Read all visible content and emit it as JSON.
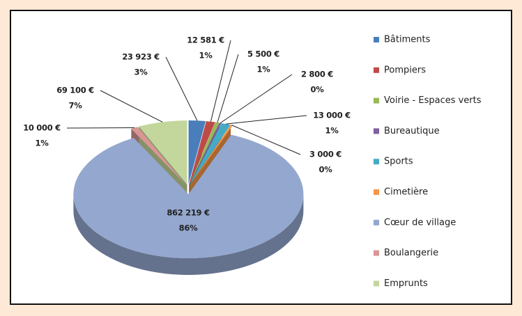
{
  "chart_data": {
    "type": "pie3d",
    "categories": [
      "Bâtiments",
      "Pompiers",
      "Voirie - Espaces verts",
      "Bureautique",
      "Sports",
      "Cimetière",
      "Cœur de village",
      "Boulangerie",
      "Emprunts"
    ],
    "values": [
      23923,
      12581,
      5500,
      2800,
      13000,
      3000,
      862219,
      10000,
      69100
    ],
    "value_labels": [
      "23 923 €",
      "12 581 €",
      "5 500 €",
      "2 800 €",
      "13 000 €",
      "3 000 €",
      "862 219 €",
      "10 000 €",
      "69 100 €"
    ],
    "percent_labels": [
      "3%",
      "1%",
      "1%",
      "0%",
      "1%",
      "0%",
      "86%",
      "1%",
      "7%"
    ],
    "colors": [
      "#4a7ebb",
      "#be4b48",
      "#98b954",
      "#7d60a0",
      "#46aac5",
      "#f79646",
      "#94a7cf",
      "#d99694",
      "#c3d69b"
    ],
    "legend": "right"
  }
}
